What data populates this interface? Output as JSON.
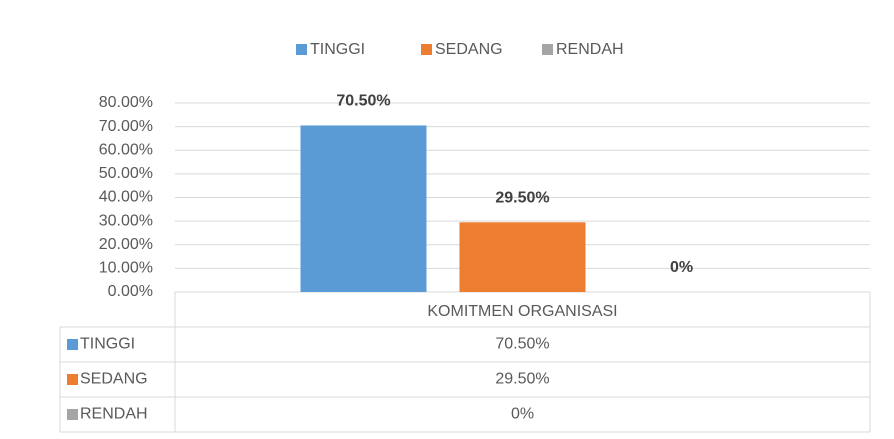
{
  "chart_data": {
    "type": "bar",
    "categories": [
      "KOMITMEN ORGANISASI"
    ],
    "series": [
      {
        "name": "TINGGI",
        "color": "#5b9bd5",
        "values": [
          70.5
        ],
        "value_labels": [
          "70.50%"
        ]
      },
      {
        "name": "SEDANG",
        "color": "#ed7d31",
        "values": [
          29.5
        ],
        "value_labels": [
          "29.50%"
        ]
      },
      {
        "name": "RENDAH",
        "color": "#a5a5a5",
        "values": [
          0
        ],
        "value_labels": [
          "0%"
        ]
      }
    ],
    "ylim": [
      0,
      80
    ],
    "yticks": [
      {
        "value": 0,
        "label": "0.00%"
      },
      {
        "value": 10,
        "label": "10.00%"
      },
      {
        "value": 20,
        "label": "20.00%"
      },
      {
        "value": 30,
        "label": "30.00%"
      },
      {
        "value": 40,
        "label": "40.00%"
      },
      {
        "value": 50,
        "label": "50.00%"
      },
      {
        "value": 60,
        "label": "60.00%"
      },
      {
        "value": 70,
        "label": "70.00%"
      },
      {
        "value": 80,
        "label": "80.00%"
      }
    ],
    "grid": true,
    "legend": "top",
    "data_table": true
  }
}
